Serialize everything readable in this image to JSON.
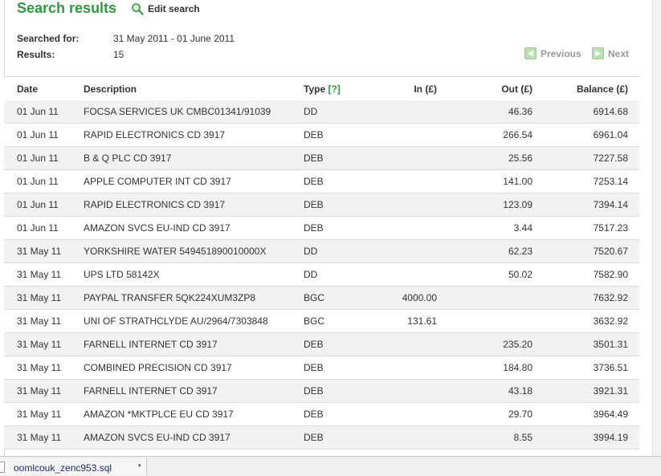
{
  "header": {
    "title": "Search results",
    "edit_search": "Edit search"
  },
  "meta": {
    "searched_for_label": "Searched for:",
    "searched_for_value": "31 May 2011 - 01 June 2011",
    "results_label": "Results:",
    "results_value": "15"
  },
  "pager": {
    "previous": "Previous",
    "next": "Next"
  },
  "table": {
    "headers": {
      "date": "Date",
      "description": "Description",
      "type": "Type",
      "type_help": "[?]",
      "in": "In (£)",
      "out": "Out (£)",
      "balance": "Balance (£)"
    },
    "rows": [
      {
        "date": "01 Jun 11",
        "desc": "FOCSA SERVICES UK CMBC01341/91039",
        "type": "DD",
        "in": "",
        "out": "46.36",
        "bal": "6914.68"
      },
      {
        "date": "01 Jun 11",
        "desc": "RAPID ELECTRONICS CD 3917",
        "type": "DEB",
        "in": "",
        "out": "266.54",
        "bal": "6961.04"
      },
      {
        "date": "01 Jun 11",
        "desc": "B & Q PLC CD 3917",
        "type": "DEB",
        "in": "",
        "out": "25.56",
        "bal": "7227.58"
      },
      {
        "date": "01 Jun 11",
        "desc": "APPLE COMPUTER INT CD 3917",
        "type": "DEB",
        "in": "",
        "out": "141.00",
        "bal": "7253.14"
      },
      {
        "date": "01 Jun 11",
        "desc": "RAPID ELECTRONICS CD 3917",
        "type": "DEB",
        "in": "",
        "out": "123.09",
        "bal": "7394.14"
      },
      {
        "date": "01 Jun 11",
        "desc": "AMAZON SVCS EU-IND CD 3917",
        "type": "DEB",
        "in": "",
        "out": "3.44",
        "bal": "7517.23"
      },
      {
        "date": "31 May 11",
        "desc": "YORKSHIRE WATER 549451890010000X",
        "type": "DD",
        "in": "",
        "out": "62.23",
        "bal": "7520.67"
      },
      {
        "date": "31 May 11",
        "desc": "UPS LTD 58142X",
        "type": "DD",
        "in": "",
        "out": "50.02",
        "bal": "7582.90"
      },
      {
        "date": "31 May 11",
        "desc": "PAYPAL TRANSFER 5QK224XUM3ZP8",
        "type": "BGC",
        "in": "4000.00",
        "out": "",
        "bal": "7632.92"
      },
      {
        "date": "31 May 11",
        "desc": "UNI OF STRATHCLYDE AU/2964/7303848",
        "type": "BGC",
        "in": "131.61",
        "out": "",
        "bal": "3632.92"
      },
      {
        "date": "31 May 11",
        "desc": "FARNELL INTERNET CD 3917",
        "type": "DEB",
        "in": "",
        "out": "235.20",
        "bal": "3501.31"
      },
      {
        "date": "31 May 11",
        "desc": "COMBINED PRECISION CD 3917",
        "type": "DEB",
        "in": "",
        "out": "184.80",
        "bal": "3736.51"
      },
      {
        "date": "31 May 11",
        "desc": "FARNELL INTERNET CD 3917",
        "type": "DEB",
        "in": "",
        "out": "43.18",
        "bal": "3921.31"
      },
      {
        "date": "31 May 11",
        "desc": "AMAZON *MKTPLCE EU CD 3917",
        "type": "DEB",
        "in": "",
        "out": "29.70",
        "bal": "3964.49"
      },
      {
        "date": "31 May 11",
        "desc": "AMAZON SVCS EU-IND CD 3917",
        "type": "DEB",
        "in": "",
        "out": "8.55",
        "bal": "3994.19"
      }
    ]
  },
  "download_bar": {
    "file_name": "oomlcouk_zenc953.sql",
    "caret": "▾"
  },
  "colors": {
    "brand_green": "#2e9a3f",
    "row_alt": "#f2f2f2"
  }
}
